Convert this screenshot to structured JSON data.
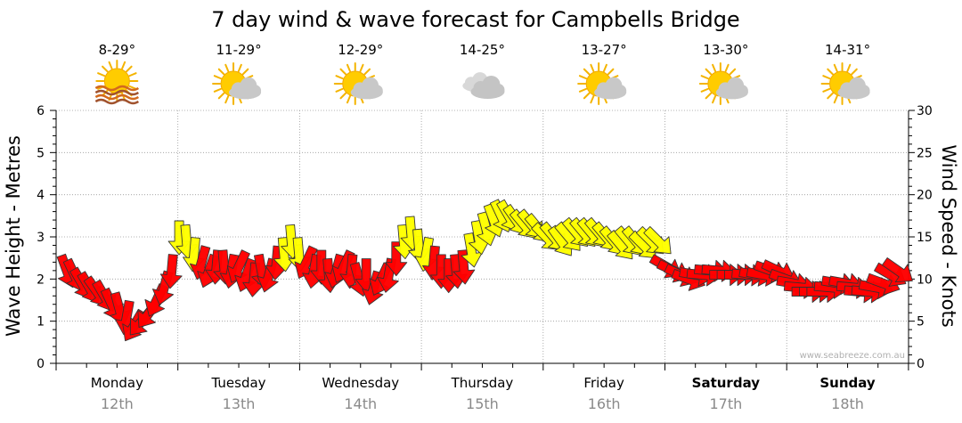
{
  "colors": {
    "wind_red": "#ff0000",
    "wind_yellow": "#ffff00",
    "arrow_stroke": "#333333",
    "grid": "#9a9a9a",
    "date_text": "#8a8a8a",
    "credit_text": "#b0b0b0"
  },
  "chart_data": {
    "type": "wind-wave-forecast",
    "title": "7 day wind & wave forecast for Campbells Bridge",
    "left_axis": {
      "label": "Wave Height - Metres",
      "range": [
        0,
        6
      ],
      "ticks": [
        "0",
        "1",
        "2",
        "3",
        "4",
        "5",
        "6"
      ]
    },
    "right_axis": {
      "label": "Wind Speed - Knots",
      "range": [
        0,
        30
      ],
      "ticks": [
        "0",
        "5",
        "10",
        "15",
        "20",
        "25",
        "30"
      ]
    },
    "days": [
      {
        "name": "Monday",
        "date": "12th",
        "bold": false,
        "temp": "8-29°",
        "icon": "sunny-haze-icon"
      },
      {
        "name": "Tuesday",
        "date": "13th",
        "bold": false,
        "temp": "11-29°",
        "icon": "partly-cloudy-icon"
      },
      {
        "name": "Wednesday",
        "date": "14th",
        "bold": false,
        "temp": "12-29°",
        "icon": "partly-cloudy-icon"
      },
      {
        "name": "Thursday",
        "date": "15th",
        "bold": false,
        "temp": "14-25°",
        "icon": "cloudy-icon"
      },
      {
        "name": "Friday",
        "date": "16th",
        "bold": false,
        "temp": "13-27°",
        "icon": "partly-cloudy-icon"
      },
      {
        "name": "Saturday",
        "date": "17th",
        "bold": true,
        "temp": "13-30°",
        "icon": "partly-cloudy-icon"
      },
      {
        "name": "Sunday",
        "date": "18th",
        "bold": true,
        "temp": "14-31°",
        "icon": "partly-cloudy-icon"
      }
    ],
    "wind_threshold_knots": 13,
    "wind_series": {
      "name": "Wind Speed (knots)",
      "points_per_day": 16,
      "values": [
        11,
        10.5,
        9.5,
        9,
        8.5,
        8,
        7,
        6.5,
        5.5,
        4.5,
        5,
        6,
        7.5,
        9,
        11,
        15,
        14.5,
        13,
        12,
        11,
        11.5,
        11.5,
        11,
        11.5,
        10.5,
        10,
        11,
        10.5,
        12,
        13,
        14.5,
        13,
        12,
        11,
        11.5,
        10.5,
        11,
        11.5,
        11,
        10,
        10.5,
        9,
        10,
        10.5,
        12.5,
        14.5,
        15.5,
        14,
        13,
        12,
        11,
        10.5,
        11,
        11.5,
        13.5,
        15,
        16,
        17,
        17.5,
        17.5,
        17,
        16.5,
        16.5,
        16,
        15,
        15,
        14.5,
        15,
        15.5,
        15.5,
        15.5,
        15.5,
        15,
        14.5,
        14,
        14.5,
        14.5,
        14,
        14.5,
        14.5,
        11.5,
        11,
        10.5,
        10,
        10.5,
        10.5,
        11,
        11,
        10.5,
        10.5,
        10.5,
        10.5,
        10.5,
        10.5,
        11,
        11,
        10,
        9.5,
        9,
        8.5,
        8.5,
        8.5,
        9,
        9.5,
        9.5,
        9,
        8.5,
        8.5,
        9,
        9.5,
        10.5,
        11
      ],
      "directions_deg": [
        160,
        155,
        150,
        150,
        145,
        150,
        155,
        165,
        190,
        210,
        220,
        215,
        205,
        195,
        185,
        180,
        175,
        185,
        195,
        200,
        185,
        175,
        190,
        205,
        200,
        185,
        170,
        195,
        185,
        175,
        175,
        175,
        205,
        190,
        180,
        175,
        195,
        205,
        185,
        165,
        180,
        195,
        205,
        190,
        180,
        175,
        175,
        175,
        190,
        185,
        180,
        180,
        175,
        175,
        170,
        170,
        165,
        160,
        155,
        150,
        145,
        140,
        140,
        140,
        135,
        140,
        145,
        140,
        140,
        140,
        140,
        140,
        140,
        140,
        140,
        140,
        140,
        135,
        135,
        135,
        120,
        115,
        115,
        110,
        100,
        95,
        95,
        95,
        90,
        90,
        90,
        95,
        100,
        100,
        110,
        115,
        110,
        100,
        95,
        90,
        90,
        90,
        95,
        100,
        100,
        95,
        95,
        95,
        100,
        110,
        120,
        125
      ]
    }
  },
  "weather": {
    "forecast_days": [
      "Monday",
      "Tuesday",
      "Wednesday",
      "Thursday",
      "Friday",
      "Saturday",
      "Sunday"
    ]
  },
  "footer": {
    "credit": "www.seabreeze.com.au"
  }
}
